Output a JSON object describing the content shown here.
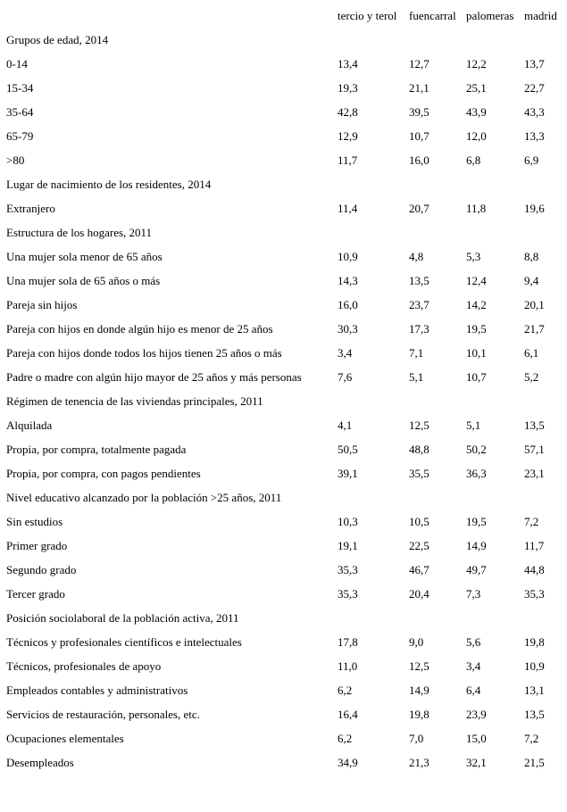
{
  "columns": [
    "tercio y terol",
    "fuencarral",
    "palomeras",
    "madrid"
  ],
  "sections": [
    {
      "title": "Grupos de edad, 2014",
      "rows": [
        {
          "label": "0-14",
          "values": [
            "13,4",
            "12,7",
            "12,2",
            "13,7"
          ]
        },
        {
          "label": "15-34",
          "values": [
            "19,3",
            "21,1",
            "25,1",
            "22,7"
          ]
        },
        {
          "label": "35-64",
          "values": [
            "42,8",
            "39,5",
            "43,9",
            "43,3"
          ]
        },
        {
          "label": "65-79",
          "values": [
            "12,9",
            "10,7",
            "12,0",
            "13,3"
          ]
        },
        {
          "label": ">80",
          "values": [
            "11,7",
            "16,0",
            "6,8",
            "6,9"
          ]
        }
      ]
    },
    {
      "title": "Lugar de nacimiento de los residentes, 2014",
      "rows": [
        {
          "label": "Extranjero",
          "values": [
            "11,4",
            "20,7",
            "11,8",
            "19,6"
          ]
        }
      ]
    },
    {
      "title": "Estructura de los hogares, 2011",
      "rows": [
        {
          "label": "Una mujer sola menor de 65 años",
          "values": [
            "10,9",
            "4,8",
            "5,3",
            "8,8"
          ]
        },
        {
          "label": "Una mujer sola de 65 años o más",
          "values": [
            "14,3",
            "13,5",
            "12,4",
            "9,4"
          ]
        },
        {
          "label": "Pareja sin hijos",
          "values": [
            "16,0",
            "23,7",
            "14,2",
            "20,1"
          ]
        },
        {
          "label": "Pareja con hijos en donde algún hijo es menor de 25 años",
          "values": [
            "30,3",
            "17,3",
            "19,5",
            "21,7"
          ]
        },
        {
          "label": "Pareja con hijos donde todos los hijos tienen 25 años o más",
          "values": [
            "3,4",
            "7,1",
            "10,1",
            "6,1"
          ]
        },
        {
          "label": "Padre o madre con algún hijo mayor de 25 años y más personas",
          "values": [
            "7,6",
            "5,1",
            "10,7",
            "5,2"
          ]
        }
      ]
    },
    {
      "title": "Régimen de tenencia de las viviendas principales, 2011",
      "rows": [
        {
          "label": "Alquilada",
          "values": [
            "4,1",
            "12,5",
            "5,1",
            "13,5"
          ]
        },
        {
          "label": "Propia, por compra, totalmente pagada",
          "values": [
            "50,5",
            "48,8",
            "50,2",
            "57,1"
          ]
        },
        {
          "label": "Propia, por compra, con pagos pendientes",
          "values": [
            "39,1",
            "35,5",
            "36,3",
            "23,1"
          ]
        }
      ]
    },
    {
      "title": "Nivel educativo alcanzado por la población >25 años, 2011",
      "rows": [
        {
          "label": "Sin estudios",
          "values": [
            "10,3",
            "10,5",
            "19,5",
            "7,2"
          ]
        },
        {
          "label": "Primer grado",
          "values": [
            "19,1",
            "22,5",
            "14,9",
            "11,7"
          ]
        },
        {
          "label": "Segundo grado",
          "values": [
            "35,3",
            "46,7",
            "49,7",
            "44,8"
          ]
        },
        {
          "label": "Tercer grado",
          "values": [
            "35,3",
            "20,4",
            "7,3",
            "35,3"
          ]
        }
      ]
    },
    {
      "title": "Posición sociolaboral de la población activa, 2011",
      "rows": [
        {
          "label": "Técnicos y profesionales científicos e intelectuales",
          "values": [
            "17,8",
            "9,0",
            "5,6",
            "19,8"
          ]
        },
        {
          "label": "Técnicos, profesionales de apoyo",
          "values": [
            "11,0",
            "12,5",
            "3,4",
            "10,9"
          ]
        },
        {
          "label": "Empleados contables y administrativos",
          "values": [
            "6,2",
            "14,9",
            "6,4",
            "13,1"
          ]
        },
        {
          "label": "Servicios de restauración, personales, etc.",
          "values": [
            "16,4",
            "19,8",
            "23,9",
            "13,5"
          ]
        },
        {
          "label": "Ocupaciones elementales",
          "values": [
            "6,2",
            "7,0",
            "15,0",
            "7,2"
          ]
        },
        {
          "label": "Desempleados",
          "values": [
            "34,9",
            "21,3",
            "32,1",
            "21,5"
          ]
        }
      ]
    }
  ]
}
